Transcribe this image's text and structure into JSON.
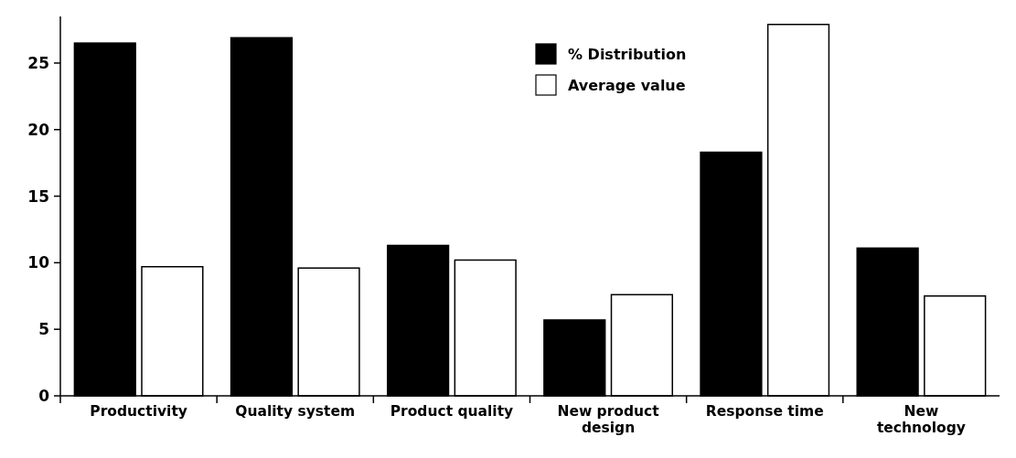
{
  "chart_data": {
    "type": "bar",
    "categories": [
      "Productivity",
      "Quality system",
      "Product quality",
      "New product\ndesign",
      "Response time",
      "New\ntechnology"
    ],
    "series": [
      {
        "name": "% Distribution",
        "color": "#000000",
        "values": [
          26.5,
          26.9,
          11.3,
          5.7,
          18.3,
          11.1
        ]
      },
      {
        "name": "Average value",
        "color": "#ffffff",
        "values": [
          9.7,
          9.6,
          10.2,
          7.6,
          27.9,
          7.5
        ]
      }
    ],
    "ylim": [
      0,
      28.5
    ],
    "yticks": [
      0,
      5,
      10,
      15,
      20,
      25
    ],
    "legend": "top right",
    "grid": false
  }
}
